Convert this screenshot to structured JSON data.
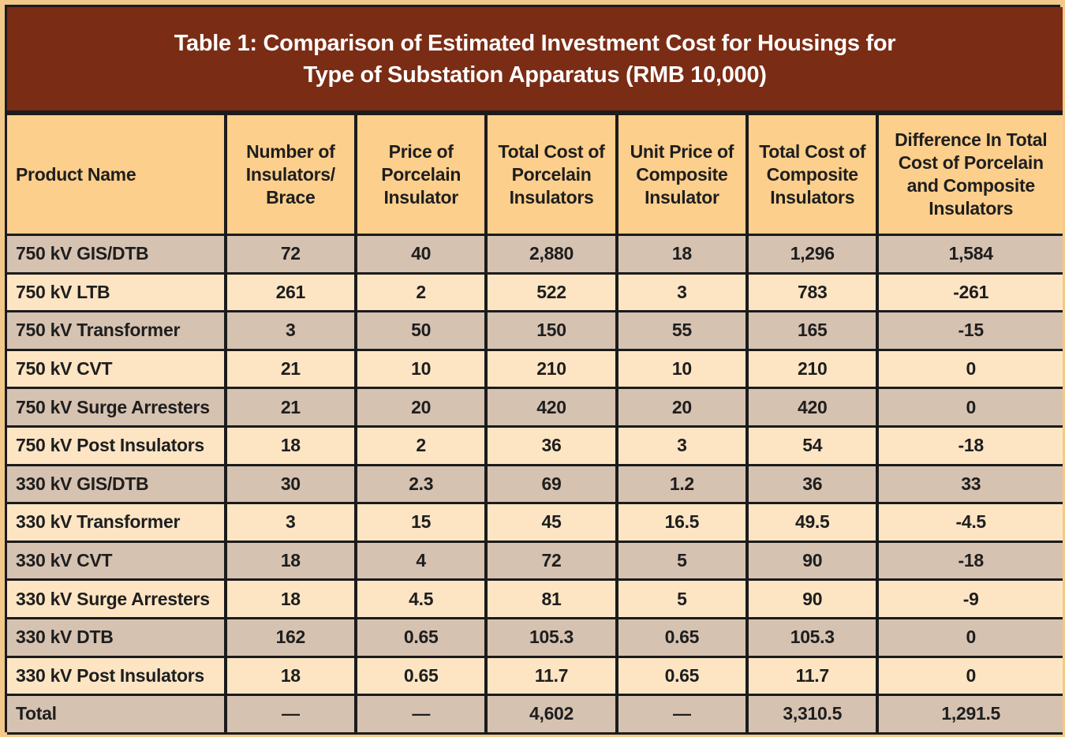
{
  "title": {
    "line1": "Table 1: Comparison of Estimated Investment Cost for Housings for",
    "line2": "Type of Substation Apparatus (RMB 10,000)"
  },
  "headers": [
    "Product Name",
    "Number of Insulators/ Brace",
    "Price of Porcelain Insulator",
    "Total Cost of Porcelain Insulators",
    "Unit Price of Composite Insulator",
    "Total Cost of Composite Insulators",
    "Difference In Total Cost of Porcelain and Composite Insulators"
  ],
  "rows": [
    [
      "750 kV GIS/DTB",
      "72",
      "40",
      "2,880",
      "18",
      "1,296",
      "1,584"
    ],
    [
      "750 kV LTB",
      "261",
      "2",
      "522",
      "3",
      "783",
      "-261"
    ],
    [
      "750 kV Transformer",
      "3",
      "50",
      "150",
      "55",
      "165",
      "-15"
    ],
    [
      "750 kV CVT",
      "21",
      "10",
      "210",
      "10",
      "210",
      "0"
    ],
    [
      "750 kV Surge Arresters",
      "21",
      "20",
      "420",
      "20",
      "420",
      "0"
    ],
    [
      "750 kV Post Insulators",
      "18",
      "2",
      "36",
      "3",
      "54",
      "-18"
    ],
    [
      "330 kV GIS/DTB",
      "30",
      "2.3",
      "69",
      "1.2",
      "36",
      "33"
    ],
    [
      "330 kV Transformer",
      "3",
      "15",
      "45",
      "16.5",
      "49.5",
      "-4.5"
    ],
    [
      "330 kV CVT",
      "18",
      "4",
      "72",
      "5",
      "90",
      "-18"
    ],
    [
      "330 kV Surge Arresters",
      "18",
      "4.5",
      "81",
      "5",
      "90",
      "-9"
    ],
    [
      "330 kV DTB",
      "162",
      "0.65",
      "105.3",
      "0.65",
      "105.3",
      "0"
    ],
    [
      "330 kV Post Insulators",
      "18",
      "0.65",
      "11.7",
      "0.65",
      "11.7",
      "0"
    ],
    [
      "Total",
      "—",
      "—",
      "4,602",
      "—",
      "3,310.5",
      "1,291.5"
    ]
  ],
  "colors": {
    "title_bg": "#7b2c14",
    "header_bg": "#fdcf8c",
    "row_dark": "#d6c2b1",
    "row_light": "#fde5c4",
    "grid": "#1b1b1b",
    "frame": "#f2c98a"
  }
}
